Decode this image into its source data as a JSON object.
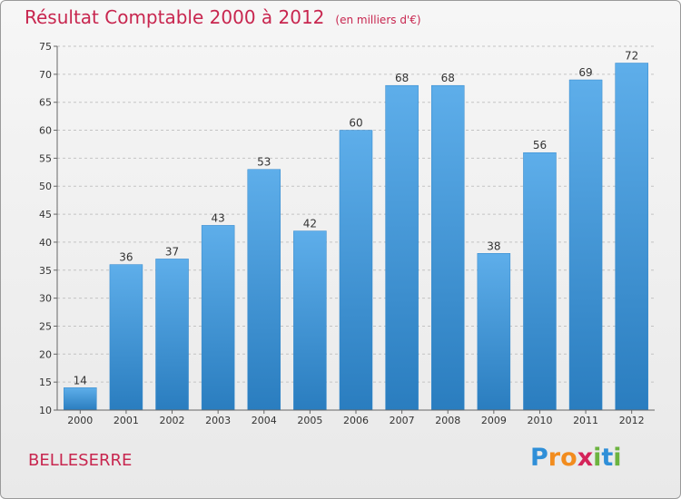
{
  "title": {
    "main": "Résultat Comptable 2000 à 2012",
    "unit": "(en milliers d'€)"
  },
  "commune": "BELLESERRE",
  "logo": {
    "text": "Proxiti",
    "letters": [
      {
        "ch": "P",
        "color": "#2f8fd8"
      },
      {
        "ch": "r",
        "color": "#f28c1e"
      },
      {
        "ch": "o",
        "color": "#f28c1e"
      },
      {
        "ch": "x",
        "color": "#d4245a"
      },
      {
        "ch": "i",
        "color": "#6cb33f"
      },
      {
        "ch": "t",
        "color": "#2f8fd8"
      },
      {
        "ch": "i",
        "color": "#6cb33f"
      }
    ]
  },
  "chart_data": {
    "type": "bar",
    "title": "Résultat Comptable 2000 à 2012",
    "subtitle": "(en milliers d'€)",
    "xlabel": "",
    "ylabel": "",
    "categories": [
      "2000",
      "2001",
      "2002",
      "2003",
      "2004",
      "2005",
      "2006",
      "2007",
      "2008",
      "2009",
      "2010",
      "2011",
      "2012"
    ],
    "values": [
      14,
      36,
      37,
      43,
      53,
      42,
      60,
      68,
      68,
      38,
      56,
      69,
      72
    ],
    "ylim": [
      10,
      75
    ],
    "yticks": [
      10,
      15,
      20,
      25,
      30,
      35,
      40,
      45,
      50,
      55,
      60,
      65,
      70,
      75
    ],
    "grid": "horizontal-dashed",
    "bar_color_top": "#5eaeea",
    "bar_color_bottom": "#2a7dbf"
  }
}
